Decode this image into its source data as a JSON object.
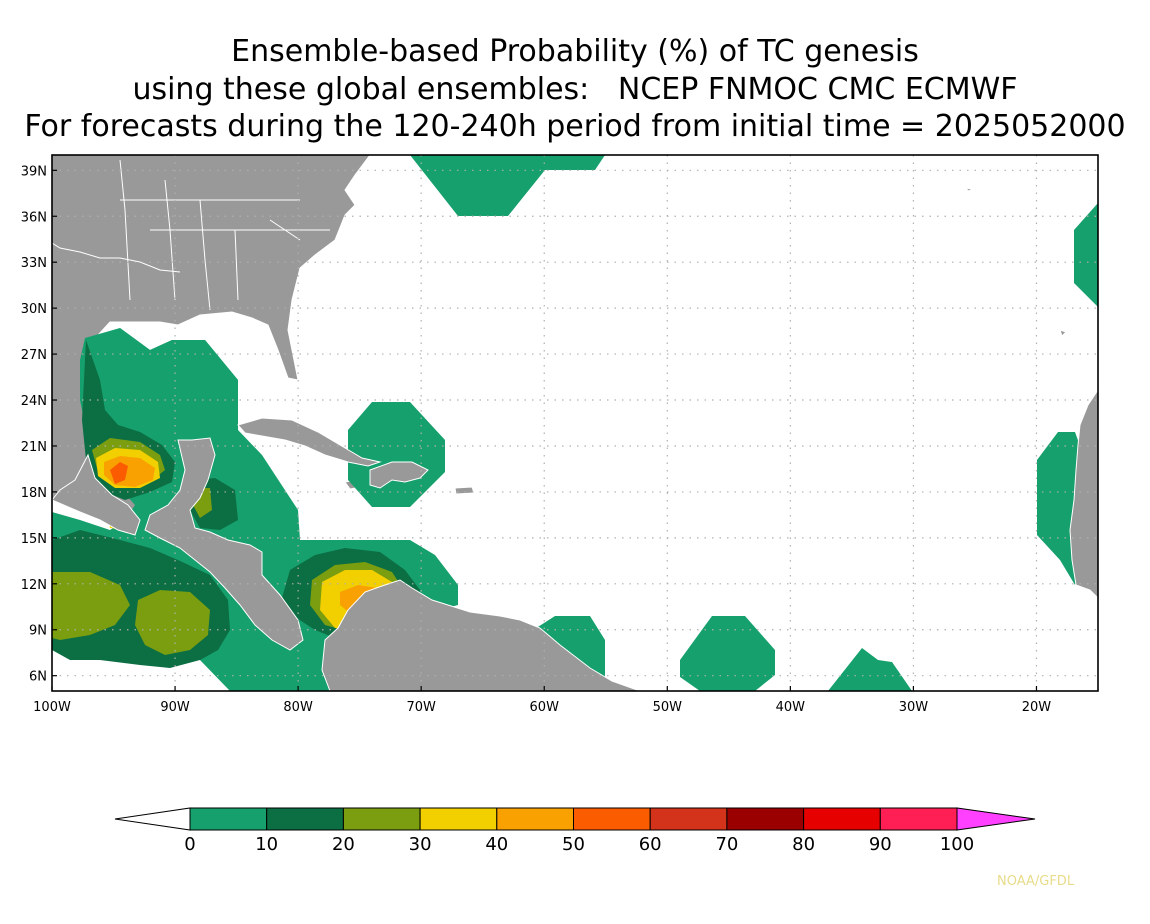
{
  "title": {
    "line1": "Ensemble-based Probability (%) of TC genesis",
    "line2": "using these global ensembles:   NCEP FNMOC CMC ECMWF",
    "line3": "For forecasts during the 120-240h period from initial time = 2025052000"
  },
  "map": {
    "lon_range": [
      -100,
      -15
    ],
    "lat_range": [
      5,
      40
    ],
    "lon_ticks": [
      {
        "value": -100,
        "label": "100W"
      },
      {
        "value": -90,
        "label": "90W"
      },
      {
        "value": -80,
        "label": "80W"
      },
      {
        "value": -70,
        "label": "70W"
      },
      {
        "value": -60,
        "label": "60W"
      },
      {
        "value": -50,
        "label": "50W"
      },
      {
        "value": -40,
        "label": "40W"
      },
      {
        "value": -30,
        "label": "30W"
      },
      {
        "value": -20,
        "label": "20W"
      }
    ],
    "lat_ticks": [
      {
        "value": 6,
        "label": "6N"
      },
      {
        "value": 9,
        "label": "9N"
      },
      {
        "value": 12,
        "label": "12N"
      },
      {
        "value": 15,
        "label": "15N"
      },
      {
        "value": 18,
        "label": "18N"
      },
      {
        "value": 21,
        "label": "21N"
      },
      {
        "value": 24,
        "label": "24N"
      },
      {
        "value": 27,
        "label": "27N"
      },
      {
        "value": 30,
        "label": "30N"
      },
      {
        "value": 33,
        "label": "33N"
      },
      {
        "value": 36,
        "label": "36N"
      },
      {
        "value": 39,
        "label": "39N"
      }
    ],
    "colors": {
      "land": "#999999",
      "border": "#ffffff",
      "grid": "#b0b0b0",
      "frame": "#000000"
    }
  },
  "legend": {
    "levels": [
      "0",
      "10",
      "20",
      "30",
      "40",
      "50",
      "60",
      "70",
      "80",
      "90",
      "100"
    ],
    "colors": [
      "#16a06d",
      "#0c6e43",
      "#7a9e0f",
      "#f2d000",
      "#f9a100",
      "#fb5c00",
      "#d2331a",
      "#9b0000",
      "#e60000",
      "#ff1f55"
    ],
    "low_color": "#ffffff",
    "high_color": "#ff40ff"
  },
  "credit": "NOAA/GFDL"
}
